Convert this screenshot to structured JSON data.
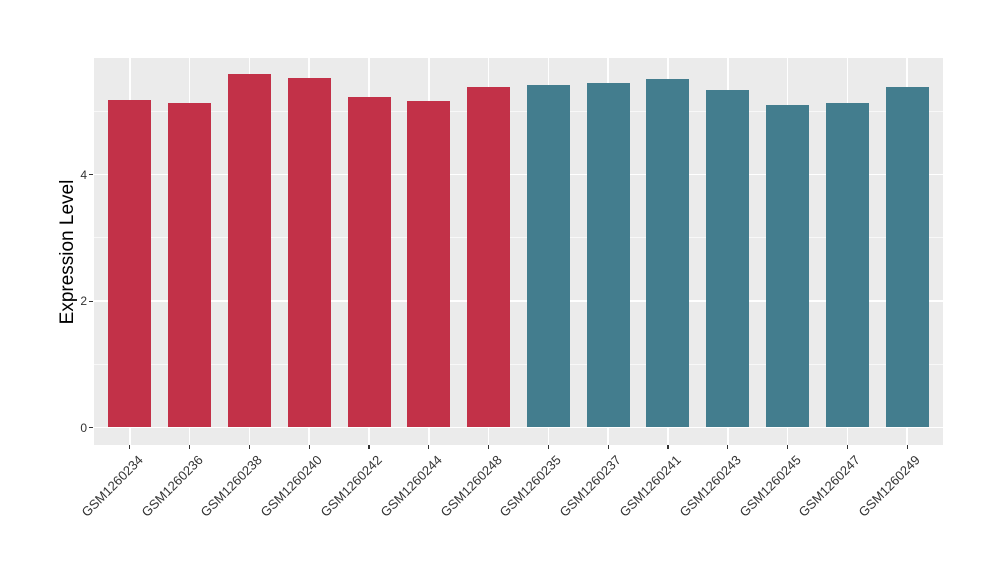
{
  "chart_data": {
    "type": "bar",
    "title": "",
    "xlabel": "",
    "ylabel": "Expression Level",
    "ylim": [
      0,
      5.84
    ],
    "yticks": [
      0,
      2,
      4
    ],
    "yticks_minor": [
      1,
      3,
      5
    ],
    "grid": true,
    "legend": false,
    "panel_bg": "#EBEBEB",
    "gridline_color": "#FFFFFF",
    "axis_text_color": "#333333",
    "palette": {
      "group1": "#C23148",
      "group2": "#437D8E"
    },
    "categories": [
      "GSM1260234",
      "GSM1260236",
      "GSM1260238",
      "GSM1260240",
      "GSM1260242",
      "GSM1260244",
      "GSM1260248",
      "GSM1260235",
      "GSM1260237",
      "GSM1260241",
      "GSM1260243",
      "GSM1260245",
      "GSM1260247",
      "GSM1260249"
    ],
    "values": [
      5.18,
      5.13,
      5.59,
      5.53,
      5.23,
      5.16,
      5.39,
      5.42,
      5.45,
      5.51,
      5.34,
      5.11,
      5.14,
      5.38
    ],
    "groups": [
      "group1",
      "group1",
      "group1",
      "group1",
      "group1",
      "group1",
      "group1",
      "group2",
      "group2",
      "group2",
      "group2",
      "group2",
      "group2",
      "group2"
    ]
  }
}
